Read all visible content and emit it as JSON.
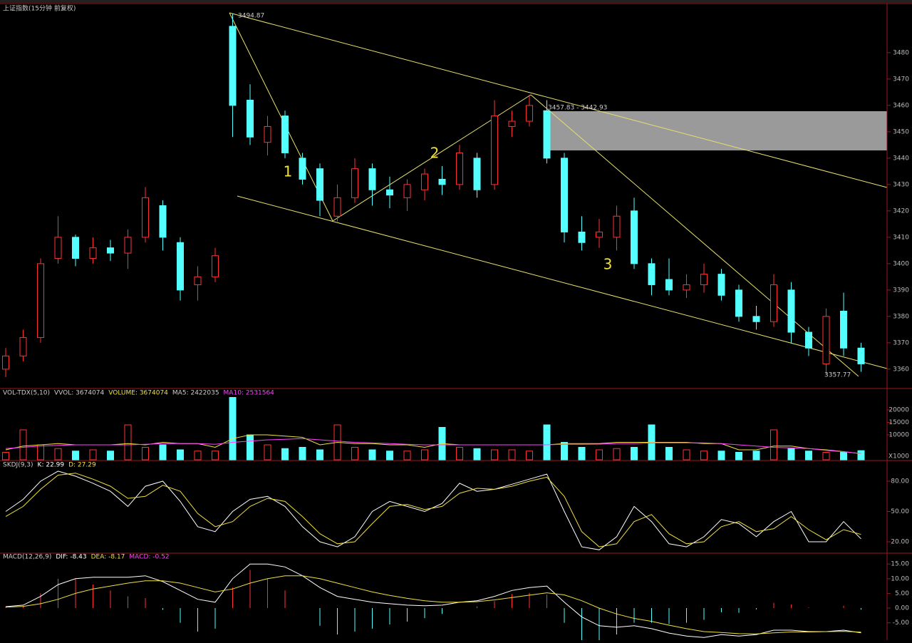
{
  "chart_data": [
    {
      "type": "candlestick",
      "header": [
        {
          "text": "上证指数(15分钟 前复权)",
          "color": "#cccccc"
        }
      ],
      "open": [
        3360,
        3365,
        3372,
        3402,
        3410,
        3402,
        3406,
        3404,
        3410,
        3422,
        3408,
        3392,
        3395,
        3490,
        3462,
        3446,
        3456,
        3440,
        3436,
        3418,
        3425,
        3436,
        3428,
        3425,
        3428,
        3432,
        3430,
        3440,
        3430,
        3452,
        3454,
        3458,
        3440,
        3412,
        3410,
        3410,
        3420,
        3400,
        3394,
        3390,
        3392,
        3396,
        3390,
        3380,
        3378,
        3390,
        3374,
        3362,
        3382,
        3368
      ],
      "close": [
        3365,
        3372,
        3400,
        3410,
        3402,
        3406,
        3404,
        3410,
        3425,
        3410,
        3390,
        3395,
        3403,
        3460,
        3448,
        3452,
        3442,
        3432,
        3424,
        3425,
        3436,
        3428,
        3426,
        3430,
        3434,
        3430,
        3442,
        3428,
        3456,
        3454,
        3460,
        3440,
        3412,
        3408,
        3412,
        3418,
        3400,
        3392,
        3390,
        3392,
        3396,
        3388,
        3380,
        3378,
        3392,
        3374,
        3368,
        3380,
        3368,
        3362
      ],
      "high": [
        3368,
        3375,
        3402,
        3418,
        3411,
        3410,
        3409,
        3413,
        3429,
        3424,
        3410,
        3399,
        3406,
        3494.87,
        3468,
        3456,
        3458,
        3442,
        3438,
        3430,
        3440,
        3438,
        3433,
        3432,
        3436,
        3437,
        3445,
        3442,
        3462,
        3458,
        3464,
        3462,
        3442,
        3418,
        3417,
        3422,
        3425,
        3402,
        3402,
        3396,
        3400,
        3398,
        3392,
        3384,
        3396,
        3393,
        3376,
        3383,
        3389,
        3370
      ],
      "low": [
        3357,
        3363,
        3370,
        3400,
        3399,
        3400,
        3401,
        3398,
        3408,
        3405,
        3386,
        3386,
        3393,
        3448,
        3445,
        3441,
        3440,
        3430,
        3418,
        3416,
        3423,
        3422,
        3421,
        3420,
        3424,
        3426,
        3428,
        3425,
        3428,
        3448,
        3452,
        3438,
        3408,
        3405,
        3406,
        3405,
        3398,
        3388,
        3388,
        3387,
        3389,
        3386,
        3378,
        3375,
        3376,
        3370,
        3365,
        3357.77,
        3365,
        3359
      ],
      "up_color": "#ff3232",
      "down_color": "#54ffff",
      "ylim": [
        3353.2,
        3497.8
      ],
      "yticks": [
        3360,
        3370,
        3380,
        3390,
        3400,
        3410,
        3420,
        3430,
        3440,
        3450,
        3460,
        3470,
        3480
      ],
      "annotations": [
        {
          "text": "3494.87",
          "color": "#cccccc"
        },
        {
          "text": "3457.83 - 3442.93",
          "color": "#cccccc"
        },
        {
          "text": "3357.77",
          "color": "#cccccc"
        },
        {
          "text": "1",
          "color": "#f0e040"
        },
        {
          "text": "2",
          "color": "#f0e040"
        },
        {
          "text": "3",
          "color": "#f0e040"
        }
      ]
    },
    {
      "type": "volume",
      "header": [
        {
          "text": "VOL-TDX(5,10)",
          "color": "#cccccc"
        },
        {
          "text": "VVOL: 3674074",
          "color": "#cccccc"
        },
        {
          "text": "VOLUME: 3674074",
          "color": "#f0e040"
        },
        {
          "text": "MA5: 2422035",
          "color": "#cccccc"
        },
        {
          "text": "MA10: 2531564",
          "color": "#ff40ff"
        }
      ],
      "values": [
        3000,
        12000,
        6000,
        4500,
        3500,
        4000,
        3500,
        14000,
        5000,
        6000,
        4000,
        3500,
        3500,
        25000,
        10000,
        6000,
        4500,
        5000,
        4000,
        14000,
        5000,
        4000,
        3500,
        3500,
        4000,
        13000,
        5000,
        4500,
        4000,
        4000,
        3500,
        14000,
        7000,
        5000,
        4000,
        4500,
        5000,
        14000,
        5000,
        4000,
        3500,
        3500,
        3000,
        3500,
        12000,
        4500,
        3500,
        3000,
        3000,
        3674
      ],
      "series": [
        {
          "name": "MA5",
          "color": "#f0e040",
          "values": [
            4000,
            5500,
            6000,
            6500,
            6000,
            6000,
            6000,
            6500,
            6000,
            7000,
            6500,
            6500,
            5000,
            8500,
            10000,
            10000,
            9500,
            9000,
            6000,
            7000,
            6500,
            6500,
            6000,
            6000,
            5000,
            6500,
            6000,
            6000,
            6000,
            6000,
            6000,
            6000,
            6500,
            6500,
            6500,
            7000,
            7000,
            7000,
            7000,
            7000,
            6500,
            6500,
            4000,
            4000,
            5500,
            5500,
            4500,
            4000,
            3300,
            2422
          ]
        },
        {
          "name": "MA10",
          "color": "#ff40ff",
          "values": [
            4500,
            5000,
            5500,
            5800,
            6000,
            6000,
            6000,
            6000,
            6200,
            6500,
            6500,
            6500,
            6200,
            7000,
            7500,
            8000,
            8200,
            8500,
            8000,
            7500,
            7000,
            6800,
            6500,
            6200,
            6000,
            6000,
            6000,
            6000,
            6000,
            6000,
            6000,
            6000,
            6200,
            6200,
            6300,
            6500,
            6500,
            6800,
            6800,
            6800,
            6800,
            6500,
            6000,
            5500,
            5000,
            4800,
            4500,
            3800,
            3200,
            2532
          ]
        }
      ],
      "ylim": [
        0,
        28000
      ],
      "yticks": [
        10000,
        15000,
        20000
      ],
      "unit": "X1000"
    },
    {
      "type": "line",
      "header": [
        {
          "text": "SKDJ(9,3)",
          "color": "#cccccc"
        },
        {
          "text": "K: 22.99",
          "color": "#ffffff"
        },
        {
          "text": "D: 27.29",
          "color": "#f0e040"
        }
      ],
      "series": [
        {
          "name": "K",
          "color": "#ffffff",
          "values": [
            50,
            62,
            80,
            90,
            85,
            78,
            70,
            55,
            75,
            80,
            60,
            35,
            30,
            50,
            62,
            65,
            55,
            35,
            20,
            15,
            25,
            50,
            60,
            55,
            50,
            58,
            78,
            70,
            72,
            77,
            82,
            87,
            50,
            15,
            12,
            25,
            55,
            40,
            18,
            15,
            25,
            42,
            38,
            25,
            40,
            50,
            20,
            20,
            40,
            22.99
          ]
        },
        {
          "name": "D",
          "color": "#f0e040",
          "values": [
            45,
            55,
            72,
            86,
            88,
            82,
            75,
            63,
            65,
            76,
            70,
            48,
            35,
            40,
            55,
            63,
            60,
            45,
            28,
            18,
            20,
            38,
            55,
            57,
            52,
            55,
            68,
            73,
            72,
            75,
            80,
            84,
            65,
            30,
            15,
            18,
            40,
            47,
            28,
            18,
            20,
            35,
            40,
            30,
            33,
            45,
            32,
            22,
            32,
            27.29
          ]
        }
      ],
      "ylim": [
        9.4,
        99.1
      ],
      "yticks": [
        {
          "value": 20,
          "label": "20.00"
        },
        {
          "value": 50,
          "label": "50.00"
        },
        {
          "value": 80,
          "label": "80.00"
        }
      ]
    },
    {
      "type": "macd",
      "header": [
        {
          "text": "MACD(12,26,9)",
          "color": "#cccccc"
        },
        {
          "text": "DIF: -8.43",
          "color": "#ffffff"
        },
        {
          "text": "DEA: -8.17",
          "color": "#f0e040"
        },
        {
          "text": "MACD: -0.52",
          "color": "#ff40ff"
        }
      ],
      "series": [
        {
          "name": "DIF",
          "color": "#ffffff",
          "values": [
            0.5,
            1,
            4,
            8,
            10,
            10.5,
            10.5,
            10.5,
            11,
            9,
            6,
            3,
            2,
            10,
            15,
            15,
            14,
            11,
            7,
            4,
            3,
            2,
            1.5,
            1,
            0.8,
            1,
            2,
            2.5,
            4,
            6,
            7,
            7.5,
            2,
            -3,
            -6,
            -6.5,
            -6,
            -7,
            -8.5,
            -9.5,
            -10,
            -9,
            -9.5,
            -9,
            -7.5,
            -7.5,
            -8,
            -8,
            -7.5,
            -8.43
          ]
        },
        {
          "name": "DEA",
          "color": "#f0e040",
          "values": [
            0.3,
            0.6,
            1.5,
            3,
            5,
            6.5,
            7.5,
            8.5,
            9.3,
            9.3,
            8.5,
            7,
            5.5,
            6.5,
            8.5,
            10,
            11,
            11,
            10,
            8.5,
            7,
            5.5,
            4.3,
            3.3,
            2.5,
            2,
            2,
            2.2,
            2.8,
            3.6,
            4.4,
            5.2,
            4.5,
            2.5,
            0,
            -2,
            -3.5,
            -4.5,
            -5.8,
            -7,
            -8,
            -8.3,
            -8.7,
            -8.8,
            -8.4,
            -8.1,
            -8.1,
            -8,
            -7.9,
            -8.17
          ]
        }
      ],
      "values": [
        0.4,
        0.8,
        5,
        10,
        10,
        8,
        6,
        4,
        3.4,
        -0.6,
        -5,
        -8,
        -7,
        7,
        13,
        10,
        6,
        0,
        -6,
        -9,
        -8,
        -7,
        -5.6,
        -4.6,
        -3.4,
        -2,
        0,
        0.6,
        2.4,
        4.8,
        5.2,
        4.6,
        -5,
        -11,
        -12,
        -9,
        -5,
        -5,
        -5.4,
        -5,
        -4,
        -1.4,
        -1.6,
        -0.4,
        1.8,
        1.2,
        0.2,
        0,
        0.8,
        -0.52
      ],
      "up_color": "#ff3232",
      "down_color": "#54ffff",
      "ylim": [
        -10.9,
        18.2
      ],
      "yticks": [
        {
          "value": -5,
          "label": "-5.00"
        },
        {
          "value": 0,
          "label": "0.00"
        },
        {
          "value": 5,
          "label": "5.00"
        },
        {
          "value": 10,
          "label": "10.00"
        },
        {
          "value": 15,
          "label": "15.00"
        }
      ]
    }
  ]
}
